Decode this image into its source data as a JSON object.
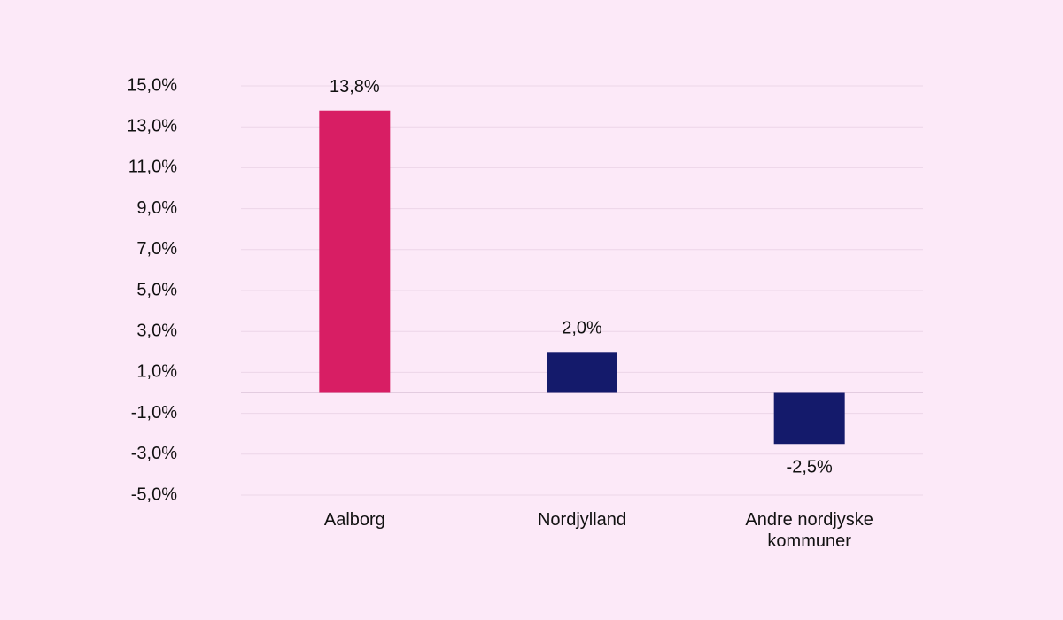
{
  "chart_data": {
    "type": "bar",
    "categories": [
      "Aalborg",
      "Nordjylland",
      "Andre nordjyske kommuner"
    ],
    "values": [
      13.8,
      2.0,
      -2.5
    ],
    "value_labels": [
      "13,8%",
      "2,0%",
      "-2,5%"
    ],
    "colors": [
      "#d81e64",
      "#141a6b",
      "#141a6b"
    ],
    "ylim": [
      -5,
      15
    ],
    "yticks": [
      {
        "value": 15,
        "label": "15,0%"
      },
      {
        "value": 13,
        "label": "13,0%"
      },
      {
        "value": 11,
        "label": "11,0%"
      },
      {
        "value": 9,
        "label": "9,0%"
      },
      {
        "value": 7,
        "label": "7,0%"
      },
      {
        "value": 5,
        "label": "5,0%"
      },
      {
        "value": 3,
        "label": "3,0%"
      },
      {
        "value": 1,
        "label": "1,0%"
      },
      {
        "value": -1,
        "label": "-1,0%"
      },
      {
        "value": -3,
        "label": "-3,0%"
      },
      {
        "value": -5,
        "label": "-5,0%"
      }
    ],
    "grid": true
  }
}
